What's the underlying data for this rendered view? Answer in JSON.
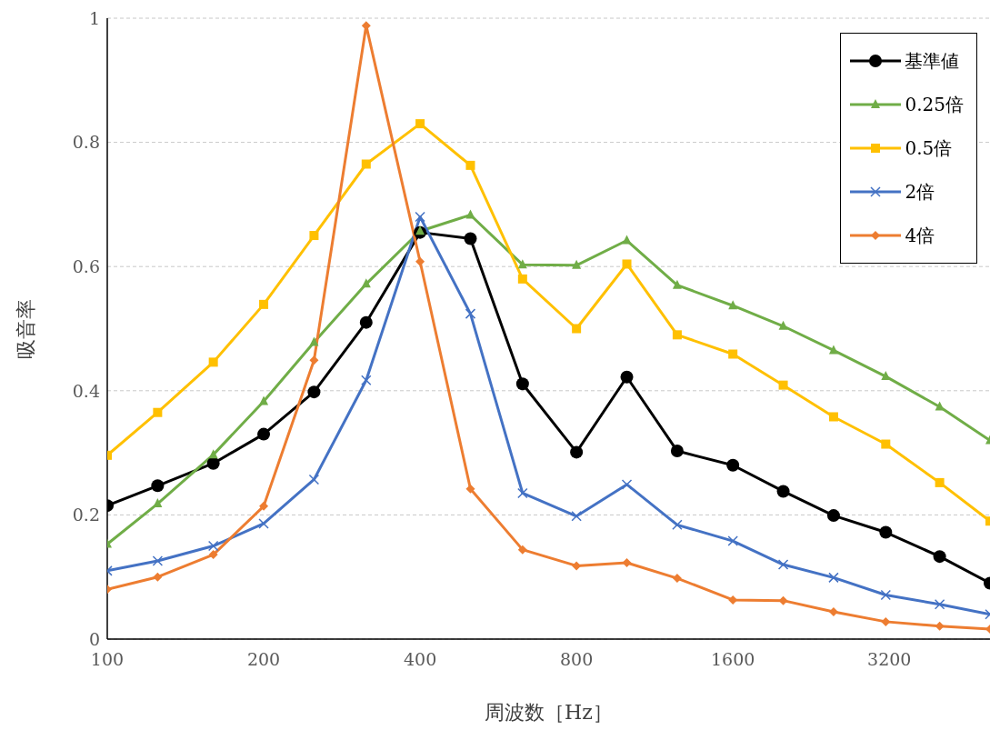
{
  "chart_data": {
    "type": "line",
    "xlabel": "周波数［Hz］",
    "ylabel": "吸音率",
    "x": [
      100,
      125,
      160,
      200,
      250,
      315,
      400,
      500,
      630,
      800,
      1000,
      1250,
      1600,
      2000,
      2500,
      3150,
      4000,
      5000
    ],
    "series": [
      {
        "name": "基準値",
        "color": "#000000",
        "marker": "circle",
        "values": [
          0.215,
          0.247,
          0.283,
          0.33,
          0.398,
          0.51,
          0.655,
          0.645,
          0.411,
          0.301,
          0.422,
          0.303,
          0.28,
          0.238,
          0.199,
          0.172,
          0.133,
          0.09
        ]
      },
      {
        "name": "0.25倍",
        "color": "#70ad47",
        "marker": "triangle",
        "values": [
          0.153,
          0.218,
          0.297,
          0.383,
          0.478,
          0.572,
          0.657,
          0.683,
          0.603,
          0.602,
          0.642,
          0.57,
          0.537,
          0.504,
          0.465,
          0.423,
          0.374,
          0.32
        ]
      },
      {
        "name": "0.5倍",
        "color": "#ffc000",
        "marker": "square",
        "values": [
          0.296,
          0.365,
          0.446,
          0.539,
          0.65,
          0.765,
          0.83,
          0.763,
          0.58,
          0.5,
          0.604,
          0.49,
          0.459,
          0.409,
          0.358,
          0.314,
          0.252,
          0.19
        ]
      },
      {
        "name": "2倍",
        "color": "#4472c4",
        "marker": "cross",
        "values": [
          0.11,
          0.126,
          0.15,
          0.186,
          0.257,
          0.417,
          0.68,
          0.524,
          0.235,
          0.198,
          0.249,
          0.184,
          0.158,
          0.12,
          0.099,
          0.071,
          0.056,
          0.04
        ]
      },
      {
        "name": "4倍",
        "color": "#ed7d31",
        "marker": "diamond",
        "values": [
          0.08,
          0.1,
          0.136,
          0.214,
          0.449,
          0.988,
          0.608,
          0.242,
          0.144,
          0.118,
          0.123,
          0.098,
          0.063,
          0.062,
          0.044,
          0.028,
          0.021,
          0.016
        ]
      }
    ],
    "log": "x",
    "xlim": [
      100,
      5000
    ],
    "xticks": [
      100,
      200,
      400,
      800,
      1600,
      3200
    ],
    "ylim": [
      0,
      1
    ],
    "yticks": [
      0,
      {
        "value": 0.2,
        "label": "0.2"
      },
      {
        "value": 0.4,
        "label": "0.4"
      },
      {
        "value": 0.6,
        "label": "0.6"
      },
      {
        "value": 0.8,
        "label": "0.8"
      },
      1
    ],
    "grid": "y",
    "legend": "top right",
    "line_style": "solid"
  }
}
